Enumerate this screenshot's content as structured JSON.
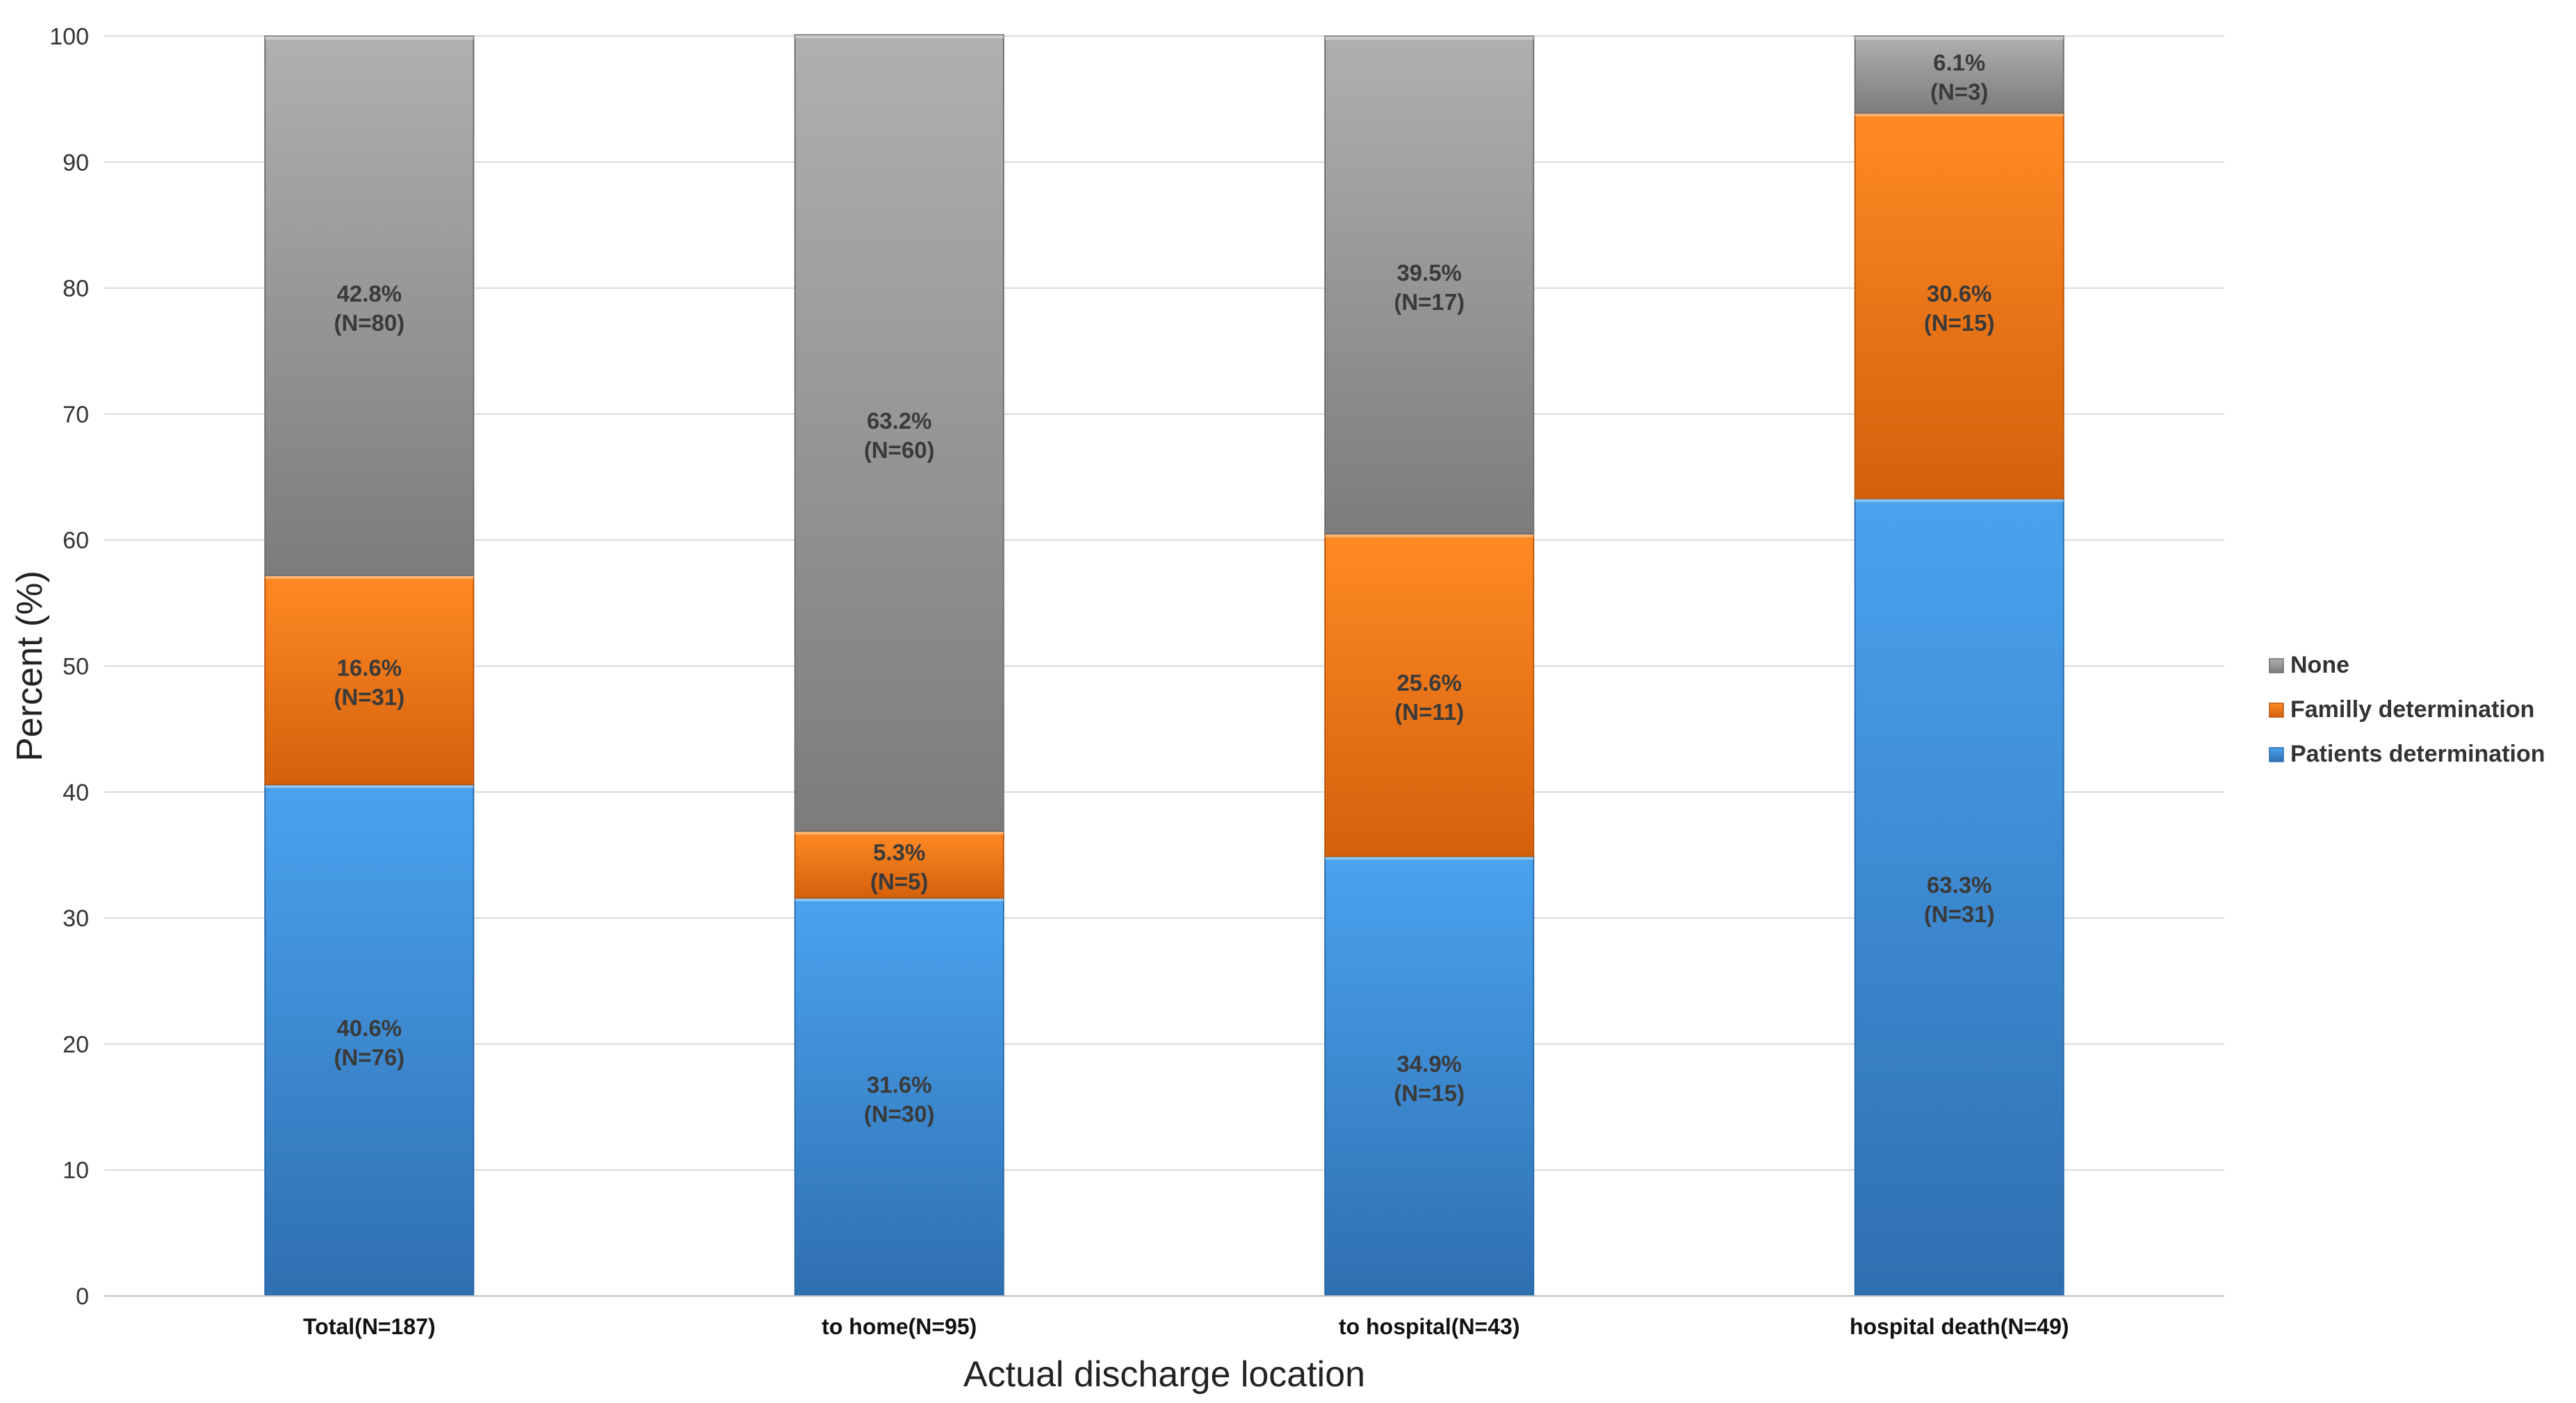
{
  "chart_data": {
    "type": "bar",
    "stacked": true,
    "title": "",
    "xlabel": "Actual discharge location",
    "ylabel": "Percent (%)",
    "ylim": [
      0,
      100
    ],
    "yticks": [
      0,
      10,
      20,
      30,
      40,
      50,
      60,
      70,
      80,
      90,
      100
    ],
    "grid": true,
    "legend_position": "right",
    "categories": [
      "Total(N=187)",
      "to home(N=95)",
      "to hospital(N=43)",
      "hospital death(N=49)"
    ],
    "series": [
      {
        "name": "Patients  determination",
        "color": "#3d8fdc",
        "values": [
          40.6,
          31.6,
          34.9,
          63.3
        ],
        "labels": [
          "40.6%",
          "31.6%",
          "34.9%",
          "63.3%"
        ],
        "counts": [
          "(N=76)",
          "(N=30)",
          "(N=15)",
          "(N=31)"
        ]
      },
      {
        "name": "Familly  determination",
        "color": "#f07a1c",
        "values": [
          16.6,
          5.3,
          25.6,
          30.6
        ],
        "labels": [
          "16.6%",
          "5.3%",
          "25.6%",
          "30.6%"
        ],
        "counts": [
          "(N=31)",
          "(N=5)",
          "(N=11)",
          "(N=15)"
        ]
      },
      {
        "name": "None",
        "color": "#9a9a9a",
        "values": [
          42.8,
          63.2,
          39.5,
          6.1
        ],
        "labels": [
          "42.8%",
          "63.2%",
          "39.5%",
          "6.1%"
        ],
        "counts": [
          "(N=80)",
          "(N=60)",
          "(N=17)",
          "(N=3)"
        ]
      }
    ],
    "legend_order": [
      "None",
      "Familly  determination",
      "Patients  determination"
    ]
  }
}
